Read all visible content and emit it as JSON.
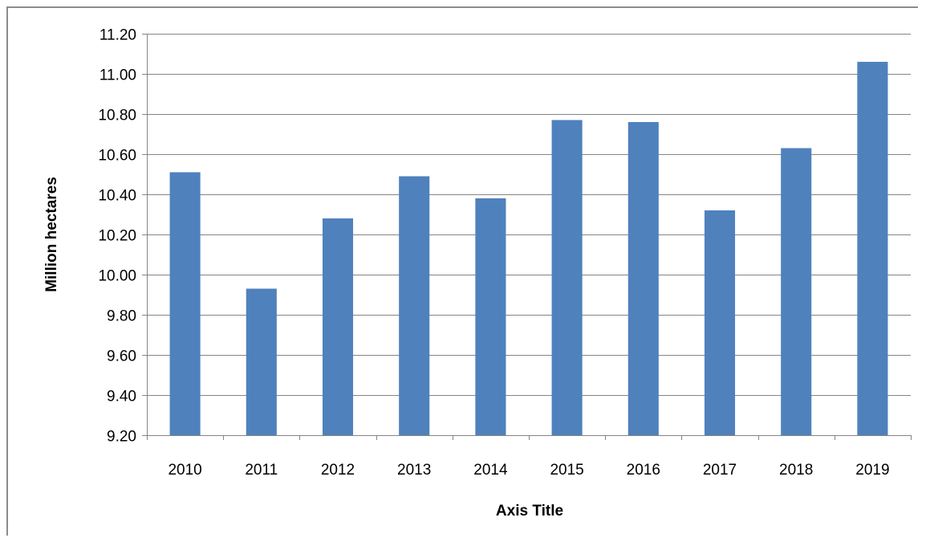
{
  "chart_data": {
    "type": "bar",
    "categories": [
      "2010",
      "2011",
      "2012",
      "2013",
      "2014",
      "2015",
      "2016",
      "2017",
      "2018",
      "2019"
    ],
    "series": [
      {
        "values": [
          10.51,
          9.93,
          10.28,
          10.49,
          10.38,
          10.77,
          10.76,
          10.32,
          10.63,
          11.06
        ],
        "color": "#4f81bd"
      }
    ],
    "title": "",
    "xlabel": "Axis Title",
    "ylabel": "Million hectares",
    "ylim": [
      9.2,
      11.2
    ],
    "ystep": 0.2,
    "ytick_labels": [
      "9.20",
      "9.40",
      "9.60",
      "9.80",
      "10.00",
      "10.20",
      "10.40",
      "10.60",
      "10.80",
      "11.00",
      "11.20"
    ],
    "grid": true,
    "legend": "none",
    "colors": {
      "bar": "#4f81bd",
      "grid": "#858585",
      "axis": "#858585"
    }
  }
}
